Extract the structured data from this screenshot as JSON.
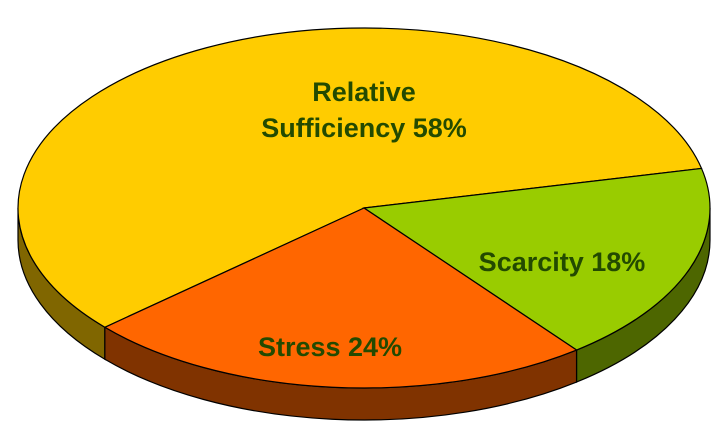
{
  "chart_data": {
    "type": "pie",
    "categories": [
      "Relative Sufficiency",
      "Scarcity",
      "Stress"
    ],
    "values": [
      58,
      18,
      24
    ],
    "value_labels": [
      "58%",
      "18%",
      "24%"
    ],
    "colors": [
      "#ffcc00",
      "#99cc00",
      "#ff6600"
    ]
  }
}
